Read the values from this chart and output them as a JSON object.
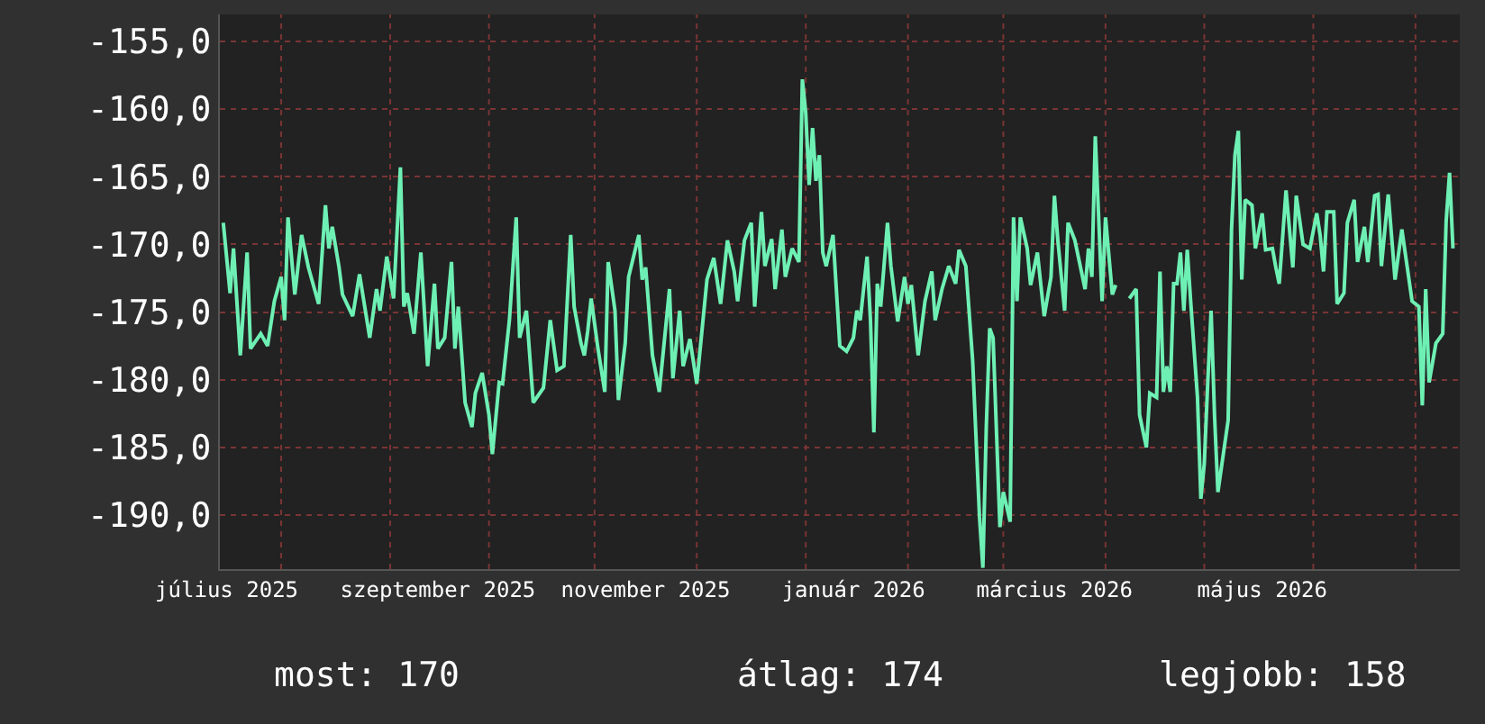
{
  "chart_data": {
    "type": "line",
    "x": [
      "2025-06-30",
      "2025-07-02",
      "2025-07-03",
      "2025-07-05",
      "2025-07-07",
      "2025-07-08",
      "2025-07-11",
      "2025-07-13",
      "2025-07-15",
      "2025-07-17",
      "2025-07-18",
      "2025-07-19",
      "2025-07-21",
      "2025-07-23",
      "2025-07-25",
      "2025-07-28",
      "2025-07-30",
      "2025-07-31",
      "2025-08-01",
      "2025-08-03",
      "2025-08-04",
      "2025-08-07",
      "2025-08-09",
      "2025-08-12",
      "2025-08-14",
      "2025-08-15",
      "2025-08-17",
      "2025-08-19",
      "2025-08-21",
      "2025-08-22",
      "2025-08-23",
      "2025-08-25",
      "2025-08-27",
      "2025-08-29",
      "2025-08-31",
      "2025-09-01",
      "2025-09-03",
      "2025-09-05",
      "2025-09-06",
      "2025-09-07",
      "2025-09-09",
      "2025-09-11",
      "2025-09-12",
      "2025-09-14",
      "2025-09-16",
      "2025-09-17",
      "2025-09-19",
      "2025-09-20",
      "2025-09-22",
      "2025-09-24",
      "2025-09-25",
      "2025-09-27",
      "2025-09-29",
      "2025-10-02",
      "2025-10-04",
      "2025-10-06",
      "2025-10-08",
      "2025-10-10",
      "2025-10-11",
      "2025-10-13",
      "2025-10-14",
      "2025-10-15",
      "2025-10-16",
      "2025-10-18",
      "2025-10-20",
      "2025-10-21",
      "2025-10-23",
      "2025-10-24",
      "2025-10-26",
      "2025-10-27",
      "2025-10-30",
      "2025-10-31",
      "2025-11-01",
      "2025-11-03",
      "2025-11-05",
      "2025-11-08",
      "2025-11-09",
      "2025-11-11",
      "2025-11-12",
      "2025-11-14",
      "2025-11-16",
      "2025-11-19",
      "2025-11-21",
      "2025-11-23",
      "2025-11-25",
      "2025-11-27",
      "2025-11-28",
      "2025-11-30",
      "2025-12-02",
      "2025-12-03",
      "2025-12-05",
      "2025-12-06",
      "2025-12-08",
      "2025-12-09",
      "2025-12-11",
      "2025-12-12",
      "2025-12-14",
      "2025-12-16",
      "2025-12-17",
      "2025-12-18",
      "2025-12-19",
      "2025-12-20",
      "2025-12-21",
      "2025-12-22",
      "2025-12-23",
      "2025-12-24",
      "2025-12-26",
      "2025-12-28",
      "2025-12-30",
      "2026-01-01",
      "2026-01-02",
      "2026-01-03",
      "2026-01-05",
      "2026-01-06",
      "2026-01-07",
      "2026-01-08",
      "2026-01-09",
      "2026-01-11",
      "2026-01-12",
      "2026-01-14",
      "2026-01-16",
      "2026-01-17",
      "2026-01-18",
      "2026-01-20",
      "2026-01-22",
      "2026-01-24",
      "2026-01-25",
      "2026-01-27",
      "2026-01-29",
      "2026-01-31",
      "2026-02-01",
      "2026-02-03",
      "2026-02-05",
      "2026-02-07",
      "2026-02-08",
      "2026-02-09",
      "2026-02-10",
      "2026-02-11",
      "2026-02-13",
      "2026-02-14",
      "2026-02-16",
      "2026-02-17",
      "2026-02-18",
      "2026-02-19",
      "2026-02-21",
      "2026-02-22",
      "2026-02-24",
      "2026-02-26",
      "2026-02-28",
      "2026-03-01",
      "2026-03-02",
      "2026-03-04",
      "2026-03-05",
      "2026-03-07",
      "2026-03-10",
      "2026-03-11",
      "2026-03-12",
      "2026-03-13",
      "2026-03-15",
      "2026-03-16",
      "2026-03-18",
      "2026-03-19",
      "2026-03-21",
      "2026-03-23",
      "2026-03-25",
      "2026-03-26",
      "2026-03-28",
      "2026-03-29",
      "2026-03-31",
      "2026-04-01",
      "2026-04-02",
      "2026-04-03",
      "2026-04-04",
      "2026-04-05",
      "2026-04-06",
      "2026-04-07",
      "2026-04-08",
      "2026-04-09",
      "2026-04-10",
      "2026-04-12",
      "2026-04-13",
      "2026-04-14",
      "2026-04-15",
      "2026-04-16",
      "2026-04-17",
      "2026-04-18",
      "2026-04-21",
      "2026-04-22",
      "2026-04-23",
      "2026-04-24",
      "2026-04-25",
      "2026-04-26",
      "2026-04-28",
      "2026-04-29",
      "2026-05-01",
      "2026-05-02",
      "2026-05-04",
      "2026-05-05",
      "2026-05-06",
      "2026-05-08",
      "2026-05-10",
      "2026-05-11",
      "2026-05-13",
      "2026-05-15",
      "2026-05-17",
      "2026-05-18",
      "2026-05-19",
      "2026-05-20",
      "2026-05-22",
      "2026-05-23",
      "2026-05-25",
      "2026-05-26",
      "2026-05-28",
      "2026-05-29",
      "2026-05-31",
      "2026-06-01",
      "2026-06-03",
      "2026-06-04",
      "2026-06-05",
      "2026-06-07",
      "2026-06-09",
      "2026-06-11",
      "2026-06-14",
      "2026-06-16",
      "2026-06-17",
      "2026-06-18",
      "2026-06-19",
      "2026-06-21",
      "2026-06-23",
      "2026-06-24",
      "2026-06-25",
      "2026-06-26"
    ],
    "series": [
      {
        "color": "#6ef0b4",
        "values": [
          -168.4,
          -173.6,
          -170.3,
          -178.2,
          -170.6,
          -177.7,
          -176.6,
          -177.5,
          -174.2,
          -172.4,
          -175.6,
          -168.0,
          -173.7,
          -169.3,
          -171.7,
          -174.4,
          -167.1,
          -170.3,
          -168.7,
          -171.7,
          -173.7,
          -175.3,
          -172.2,
          -176.9,
          -173.3,
          -174.9,
          -170.9,
          -174.0,
          -164.3,
          -174.6,
          -173.6,
          -176.6,
          -170.6,
          -179.0,
          -172.9,
          -177.7,
          -176.9,
          -171.3,
          -177.7,
          -174.6,
          -181.7,
          -183.5,
          -181.0,
          -179.5,
          -182.6,
          -185.5,
          -180.2,
          -180.3,
          -175.6,
          -168.0,
          -176.9,
          -174.9,
          -181.7,
          -180.6,
          -175.6,
          -179.3,
          -179.0,
          -169.3,
          -174.6,
          -177.3,
          -178.2,
          -176.4,
          -174.0,
          -177.7,
          -180.9,
          -171.3,
          -174.9,
          -181.5,
          -177.3,
          -172.4,
          -169.3,
          -172.6,
          -171.7,
          -178.2,
          -180.9,
          -173.3,
          -179.9,
          -174.9,
          -179.0,
          -177.0,
          -180.3,
          -172.6,
          -171.0,
          -174.4,
          -169.7,
          -172.0,
          -174.2,
          -169.7,
          -168.4,
          -174.6,
          -167.6,
          -171.6,
          -169.6,
          -173.3,
          -168.9,
          -172.4,
          -170.3,
          -171.3,
          -157.8,
          -160.3,
          -165.6,
          -161.4,
          -165.3,
          -163.4,
          -170.6,
          -171.6,
          -169.3,
          -177.5,
          -177.9,
          -176.9,
          -174.9,
          -175.6,
          -170.9,
          -175.6,
          -183.9,
          -172.9,
          -174.6,
          -168.4,
          -171.6,
          -175.7,
          -172.4,
          -174.4,
          -173.0,
          -178.2,
          -174.2,
          -172.0,
          -175.6,
          -173.3,
          -171.6,
          -172.9,
          -170.4,
          -171.6,
          -178.6,
          -190.1,
          -193.9,
          -183.5,
          -176.2,
          -176.9,
          -190.9,
          -188.3,
          -190.5,
          -168.0,
          -174.2,
          -168.0,
          -170.3,
          -173.0,
          -170.6,
          -175.3,
          -172.4,
          -166.4,
          -169.7,
          -174.9,
          -168.4,
          -169.7,
          -173.3,
          -170.3,
          -172.4,
          -162.0,
          -174.2,
          -168.0,
          -173.7,
          -173.0,
          null,
          -174.0,
          -173.3,
          -182.6,
          -185.0,
          -181.0,
          -181.3,
          -172.0,
          -180.9,
          -179.0,
          -180.9,
          -172.9,
          -172.9,
          -170.6,
          -174.9,
          -170.4,
          -174.2,
          -181.3,
          -188.8,
          -186.2,
          -180.3,
          -174.9,
          -182.6,
          -188.3,
          -183.0,
          -168.9,
          -163.4,
          -161.6,
          -172.6,
          -166.7,
          -167.1,
          -170.3,
          -167.7,
          -170.4,
          -170.3,
          -171.7,
          -172.9,
          -166.0,
          -171.7,
          -166.4,
          -170.0,
          -170.3,
          -167.7,
          -169.3,
          -172.0,
          -167.6,
          -167.6,
          -174.4,
          -173.6,
          -168.4,
          -166.7,
          -171.3,
          -168.7,
          -171.3,
          -166.4,
          -166.3,
          -171.6,
          -166.3,
          -172.6,
          -168.9,
          -174.2,
          -174.6,
          -181.9,
          -173.3,
          -180.2,
          -177.3,
          -176.6,
          -168.3,
          -164.7,
          -170.3
        ]
      }
    ],
    "xlim": [
      "2025-06-29",
      "2026-06-28"
    ],
    "xticks": [
      {
        "value": "2025-07-01",
        "label": "július 2025"
      },
      {
        "value": "2025-07-17",
        "label": null
      },
      {
        "value": "2025-08-18",
        "label": null
      },
      {
        "value": "2025-09-01",
        "label": "szeptember 2025"
      },
      {
        "value": "2025-09-16",
        "label": null
      },
      {
        "value": "2025-10-17",
        "label": null
      },
      {
        "value": "2025-11-01",
        "label": "november 2025"
      },
      {
        "value": "2025-11-16",
        "label": null
      },
      {
        "value": "2025-12-18",
        "label": null
      },
      {
        "value": "2026-01-01",
        "label": "január 2026"
      },
      {
        "value": "2026-01-17",
        "label": null
      },
      {
        "value": "2026-02-14",
        "label": null
      },
      {
        "value": "2026-03-01",
        "label": "március 2026"
      },
      {
        "value": "2026-03-16",
        "label": null
      },
      {
        "value": "2026-04-14",
        "label": null
      },
      {
        "value": "2026-05-01",
        "label": "május 2026"
      },
      {
        "value": "2026-05-16",
        "label": null
      },
      {
        "value": "2026-06-15",
        "label": null
      }
    ],
    "ylim": [
      -194,
      -153
    ],
    "yticks": [
      {
        "value": -155,
        "label": "-155,0"
      },
      {
        "value": -160,
        "label": "-160,0"
      },
      {
        "value": -165,
        "label": "-165,0"
      },
      {
        "value": -170,
        "label": "-170,0"
      },
      {
        "value": -175,
        "label": "-175,0"
      },
      {
        "value": -180,
        "label": "-180,0"
      },
      {
        "value": -185,
        "label": "-185,0"
      },
      {
        "value": -190,
        "label": "-190,0"
      }
    ],
    "grid": true,
    "annotations": [
      "most: 170",
      "átlag: 174",
      "legjobb: 158"
    ]
  }
}
